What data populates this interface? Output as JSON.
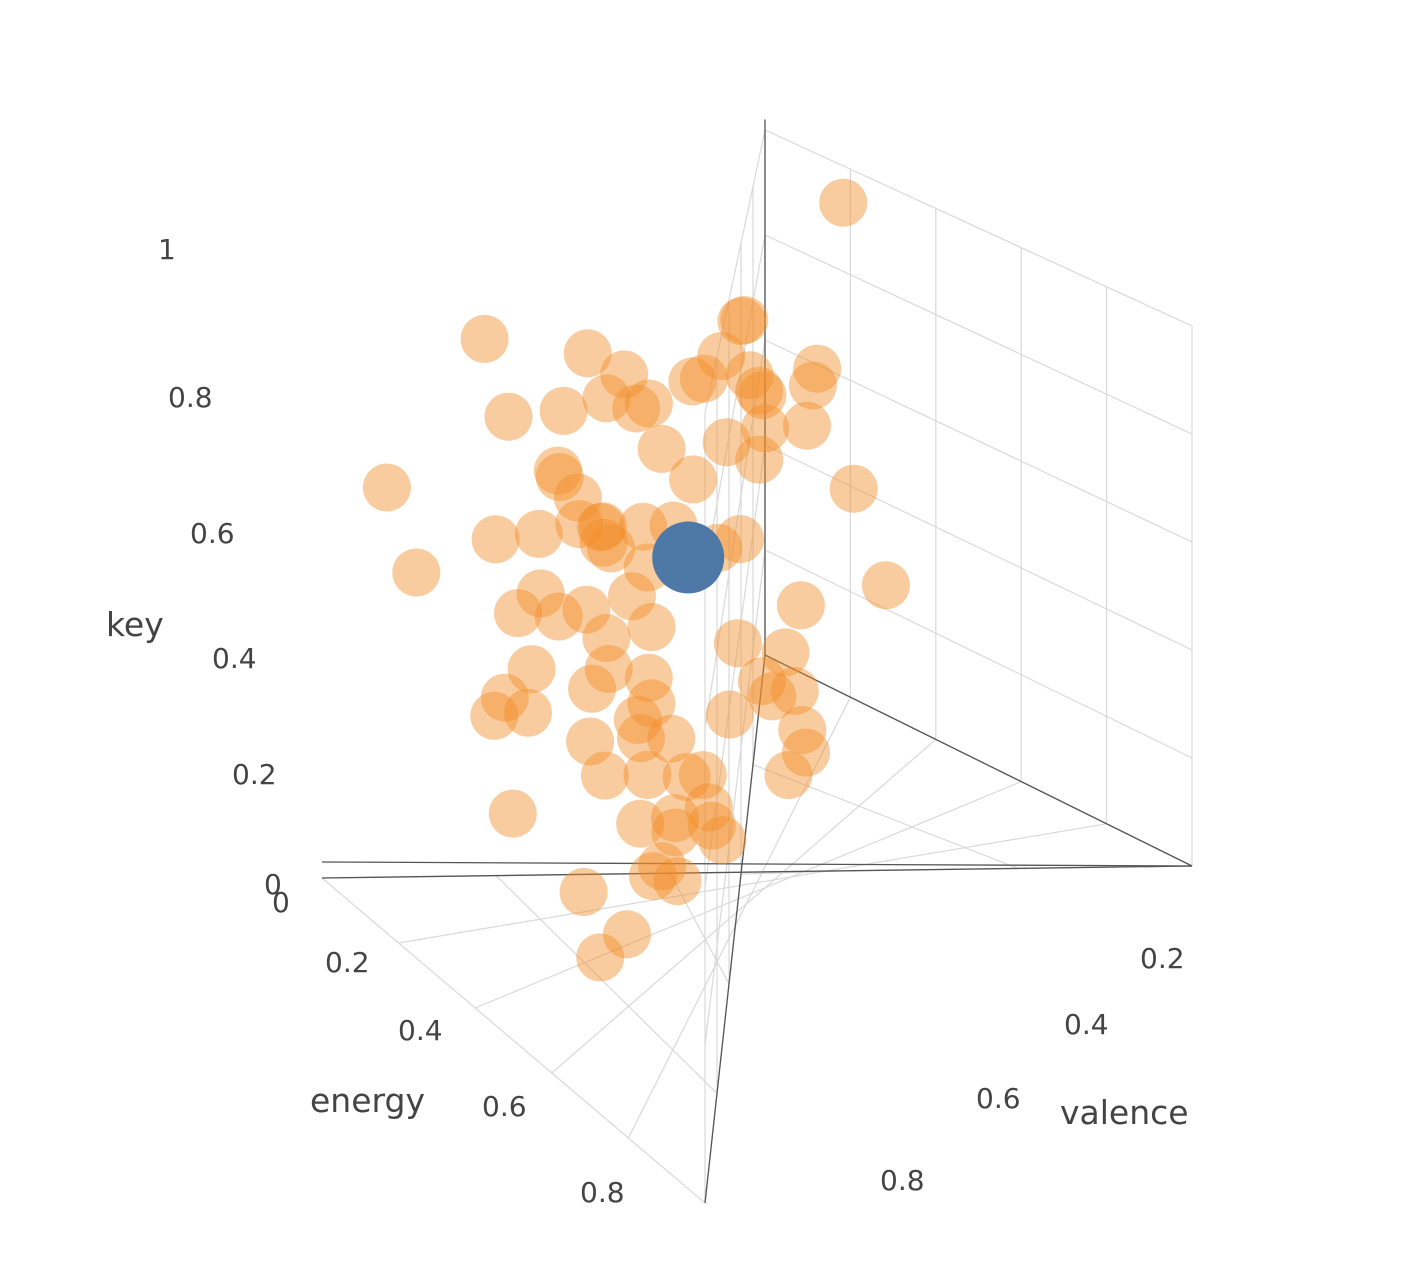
{
  "chart_data": {
    "type": "scatter3d",
    "axes": {
      "x": {
        "label": "energy",
        "range": [
          0,
          1
        ],
        "ticks": [
          "0",
          "0.2",
          "0.4",
          "0.6",
          "0.8"
        ]
      },
      "y": {
        "label": "valence",
        "range": [
          0,
          1
        ],
        "ticks": [
          "0.2",
          "0.4",
          "0.6",
          "0.8"
        ]
      },
      "z": {
        "label": "key",
        "range": [
          0,
          1
        ],
        "ticks": [
          "0",
          "0.2",
          "0.4",
          "0.6",
          "0.8",
          "1"
        ]
      }
    },
    "grid": true,
    "legend": "none",
    "colors": {
      "series_main": "#f28e2b",
      "series_highlight": "#4e79a7"
    },
    "series": [
      {
        "color": "#f28e2b",
        "opacity": 0.45,
        "points": [
          [
            0.62,
            0.12,
            0.69
          ],
          [
            0.55,
            0.26,
            0.66
          ],
          [
            0.7,
            0.34,
            0.73
          ],
          [
            0.52,
            0.19,
            0.51
          ],
          [
            0.56,
            0.12,
            0.58
          ],
          [
            0.1,
            0.31,
            0.18
          ],
          [
            0.33,
            0.06,
            0.91
          ],
          [
            0.47,
            0.18,
            0.35
          ],
          [
            0.55,
            0.12,
            0.18
          ],
          [
            0.62,
            0.24,
            0.62
          ],
          [
            0.58,
            0.14,
            0.09
          ],
          [
            0.75,
            0.26,
            0.19
          ],
          [
            0.5,
            0.21,
            0.63
          ],
          [
            0.38,
            0.32,
            0.24
          ],
          [
            0.5,
            0.49,
            0.92
          ],
          [
            0.83,
            0.84,
            0.02
          ],
          [
            0.58,
            0.24,
            0.24
          ],
          [
            0.8,
            0.34,
            0.89
          ],
          [
            0.62,
            0.25,
            0.42
          ],
          [
            0.28,
            0.71,
            0.46
          ],
          [
            0.6,
            0.68,
            0.77
          ],
          [
            0.73,
            0.72,
            0.16
          ],
          [
            0.38,
            0.3,
            0.8
          ],
          [
            0.62,
            0.8,
            0.55
          ],
          [
            0.69,
            0.65,
            0.13
          ],
          [
            0.66,
            0.3,
            0.22
          ],
          [
            0.68,
            0.29,
            0.25
          ],
          [
            0.16,
            0.15,
            0.3
          ],
          [
            0.43,
            0.14,
            0.73
          ],
          [
            0.69,
            0.69,
            0.39
          ],
          [
            0.85,
            0.76,
            0.25
          ],
          [
            0.19,
            0.03,
            0.53
          ],
          [
            0.46,
            0.18,
            0.91
          ],
          [
            0.24,
            0.14,
            0.77
          ],
          [
            0.67,
            0.57,
            0.73
          ],
          [
            0.67,
            0.56,
            0.33
          ],
          [
            0.58,
            0.2,
            0.9
          ],
          [
            0.6,
            0.54,
            0.8
          ],
          [
            0.55,
            0.14,
            0.46
          ],
          [
            0.5,
            0.2,
            0.85
          ],
          [
            0.73,
            0.46,
            0.33
          ],
          [
            0.62,
            0.31,
            0.66
          ],
          [
            0.55,
            0.11,
            0.7
          ],
          [
            0.48,
            0.11,
            0.55
          ],
          [
            0.81,
            0.76,
            0.19
          ],
          [
            0.53,
            0.64,
            0.72
          ],
          [
            0.82,
            0.88,
            0.68
          ],
          [
            0.64,
            0.21,
            0.39
          ],
          [
            0.58,
            0.57,
            0.3
          ],
          [
            0.43,
            0.05,
            0.27
          ],
          [
            0.72,
            0.33,
            0.88
          ],
          [
            0.36,
            0.42,
            0.21
          ],
          [
            0.64,
            0.27,
            0.18
          ],
          [
            0.79,
            0.95,
            0.96
          ],
          [
            0.38,
            0.13,
            0.55
          ],
          [
            0.59,
            0.14,
            0.7
          ],
          [
            0.45,
            0.35,
            0.3
          ],
          [
            0.61,
            0.55,
            0.79
          ],
          [
            0.46,
            0.06,
            0.42
          ],
          [
            0.56,
            0.27,
            0.84
          ],
          [
            0.6,
            0.54,
            0.69
          ],
          [
            0.53,
            0.12,
            0.73
          ],
          [
            0.34,
            0.25,
            0.62
          ],
          [
            0.52,
            0.26,
            0.37
          ],
          [
            0.35,
            0.3,
            0.51
          ],
          [
            0.59,
            0.49,
            0.58
          ],
          [
            0.33,
            0.15,
            0.62
          ],
          [
            0.48,
            0.12,
            0.84
          ],
          [
            0.38,
            0.05,
            0.64
          ],
          [
            0.62,
            0.44,
            0.88
          ],
          [
            0.71,
            0.51,
            0.92
          ],
          [
            0.44,
            0.08,
            0.47
          ],
          [
            0.69,
            0.21,
            0.56
          ],
          [
            0.67,
            0.33,
            0.29
          ],
          [
            0.5,
            0.3,
            0.12
          ],
          [
            0.46,
            0.12,
            0.75
          ],
          [
            0.71,
            0.45,
            0.75
          ],
          [
            0.51,
            0.2,
            0.46
          ],
          [
            0.47,
            0.3,
            0.41
          ],
          [
            0.64,
            0.43,
            0.59
          ],
          [
            0.65,
            0.52,
            0.83
          ],
          [
            0.2,
            0.15,
            0.34
          ],
          [
            0.66,
            0.44,
            0.14
          ],
          [
            0.43,
            0.06,
            0.55
          ],
          [
            0.3,
            0.48,
            0.4
          ],
          [
            0.66,
            0.4,
            0.21
          ],
          [
            0.57,
            0.42,
            0.16
          ],
          [
            0.51,
            0.24,
            0.06
          ],
          [
            0.53,
            0.31,
            0.76
          ],
          [
            0.15,
            0.01,
            0.64
          ]
        ]
      },
      {
        "color": "#4e79a7",
        "opacity": 1,
        "points": [
          [
            0.62,
            0.35,
            0.6
          ]
        ]
      }
    ]
  }
}
